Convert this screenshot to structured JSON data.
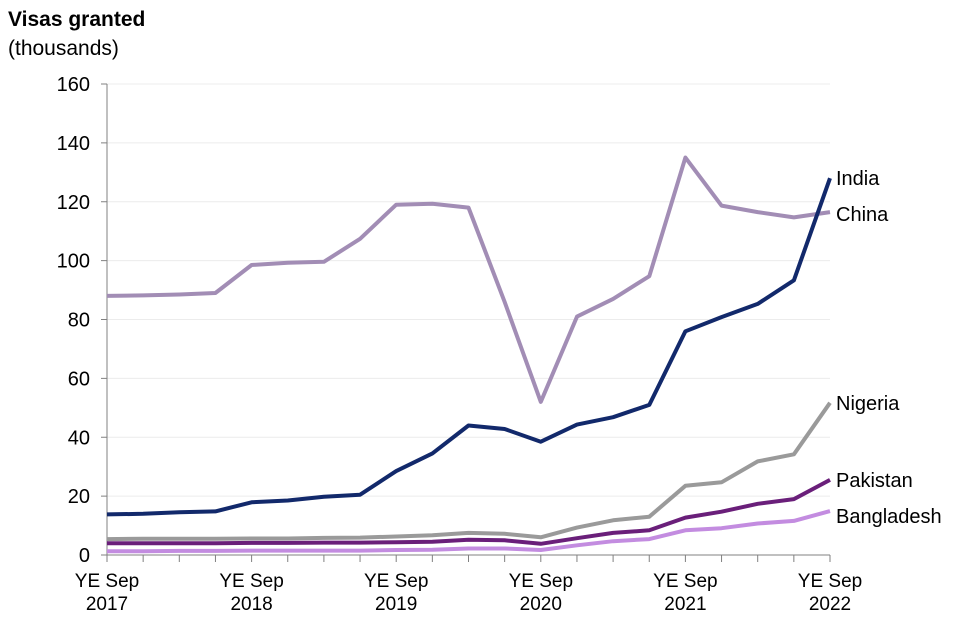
{
  "chart_data": {
    "type": "line",
    "title": "Visas granted",
    "subtitle": "(thousands)",
    "ylim": [
      0,
      160
    ],
    "yticks": [
      0,
      20,
      40,
      60,
      80,
      100,
      120,
      140,
      160
    ],
    "x": [
      "YE Sep 2017",
      "YE Dec 2017",
      "YE Mar 2018",
      "YE Jun 2018",
      "YE Sep 2018",
      "YE Dec 2018",
      "YE Mar 2019",
      "YE Jun 2019",
      "YE Sep 2019",
      "YE Dec 2019",
      "YE Mar 2020",
      "YE Jun 2020",
      "YE Sep 2020",
      "YE Dec 2020",
      "YE Mar 2021",
      "YE Jun 2021",
      "YE Sep 2021",
      "YE Dec 2021",
      "YE Mar 2022",
      "YE Jun 2022",
      "YE Sep 2022"
    ],
    "xtick_labels": [
      {
        "index": 0,
        "line1": "YE Sep",
        "line2": "2017"
      },
      {
        "index": 4,
        "line1": "YE Sep",
        "line2": "2018"
      },
      {
        "index": 8,
        "line1": "YE Sep",
        "line2": "2019"
      },
      {
        "index": 12,
        "line1": "YE Sep",
        "line2": "2020"
      },
      {
        "index": 16,
        "line1": "YE Sep",
        "line2": "2021"
      },
      {
        "index": 20,
        "line1": "YE Sep",
        "line2": "2022"
      }
    ],
    "grid": true,
    "series": [
      {
        "name": "China",
        "color": "#a28db5",
        "values": [
          88,
          88.2,
          88.5,
          89,
          98.5,
          99.3,
          99.6,
          107.4,
          119,
          119.3,
          118,
          86,
          52,
          81,
          87,
          94.7,
          135,
          118.7,
          116.5,
          114.7,
          116.5
        ]
      },
      {
        "name": "India",
        "color": "#12296b",
        "values": [
          13.8,
          14,
          14.5,
          14.8,
          17.9,
          18.5,
          19.8,
          20.5,
          28.5,
          34.5,
          44,
          42.8,
          38.5,
          44.3,
          46.8,
          51,
          76,
          80.8,
          85.3,
          93.3,
          128
        ]
      },
      {
        "name": "Nigeria",
        "color": "#9a9a9a",
        "values": [
          5.4,
          5.5,
          5.5,
          5.5,
          5.6,
          5.6,
          5.8,
          5.9,
          6.3,
          6.7,
          7.5,
          7.2,
          6,
          9.3,
          11.8,
          13,
          23.5,
          24.7,
          31.8,
          34.2,
          51.7
        ]
      },
      {
        "name": "Pakistan",
        "color": "#6a1f7a",
        "values": [
          4,
          4,
          4,
          4,
          4.1,
          4.1,
          4.2,
          4.2,
          4.3,
          4.5,
          5.2,
          5,
          3.8,
          5.7,
          7.5,
          8.4,
          12.7,
          14.7,
          17.4,
          19,
          25.5
        ]
      },
      {
        "name": "Bangladesh",
        "color": "#c38ce0",
        "values": [
          1.3,
          1.3,
          1.4,
          1.4,
          1.5,
          1.5,
          1.5,
          1.5,
          1.7,
          1.8,
          2.2,
          2.2,
          1.7,
          3.3,
          4.7,
          5.4,
          8.4,
          9.1,
          10.7,
          11.6,
          14.9
        ]
      }
    ]
  }
}
